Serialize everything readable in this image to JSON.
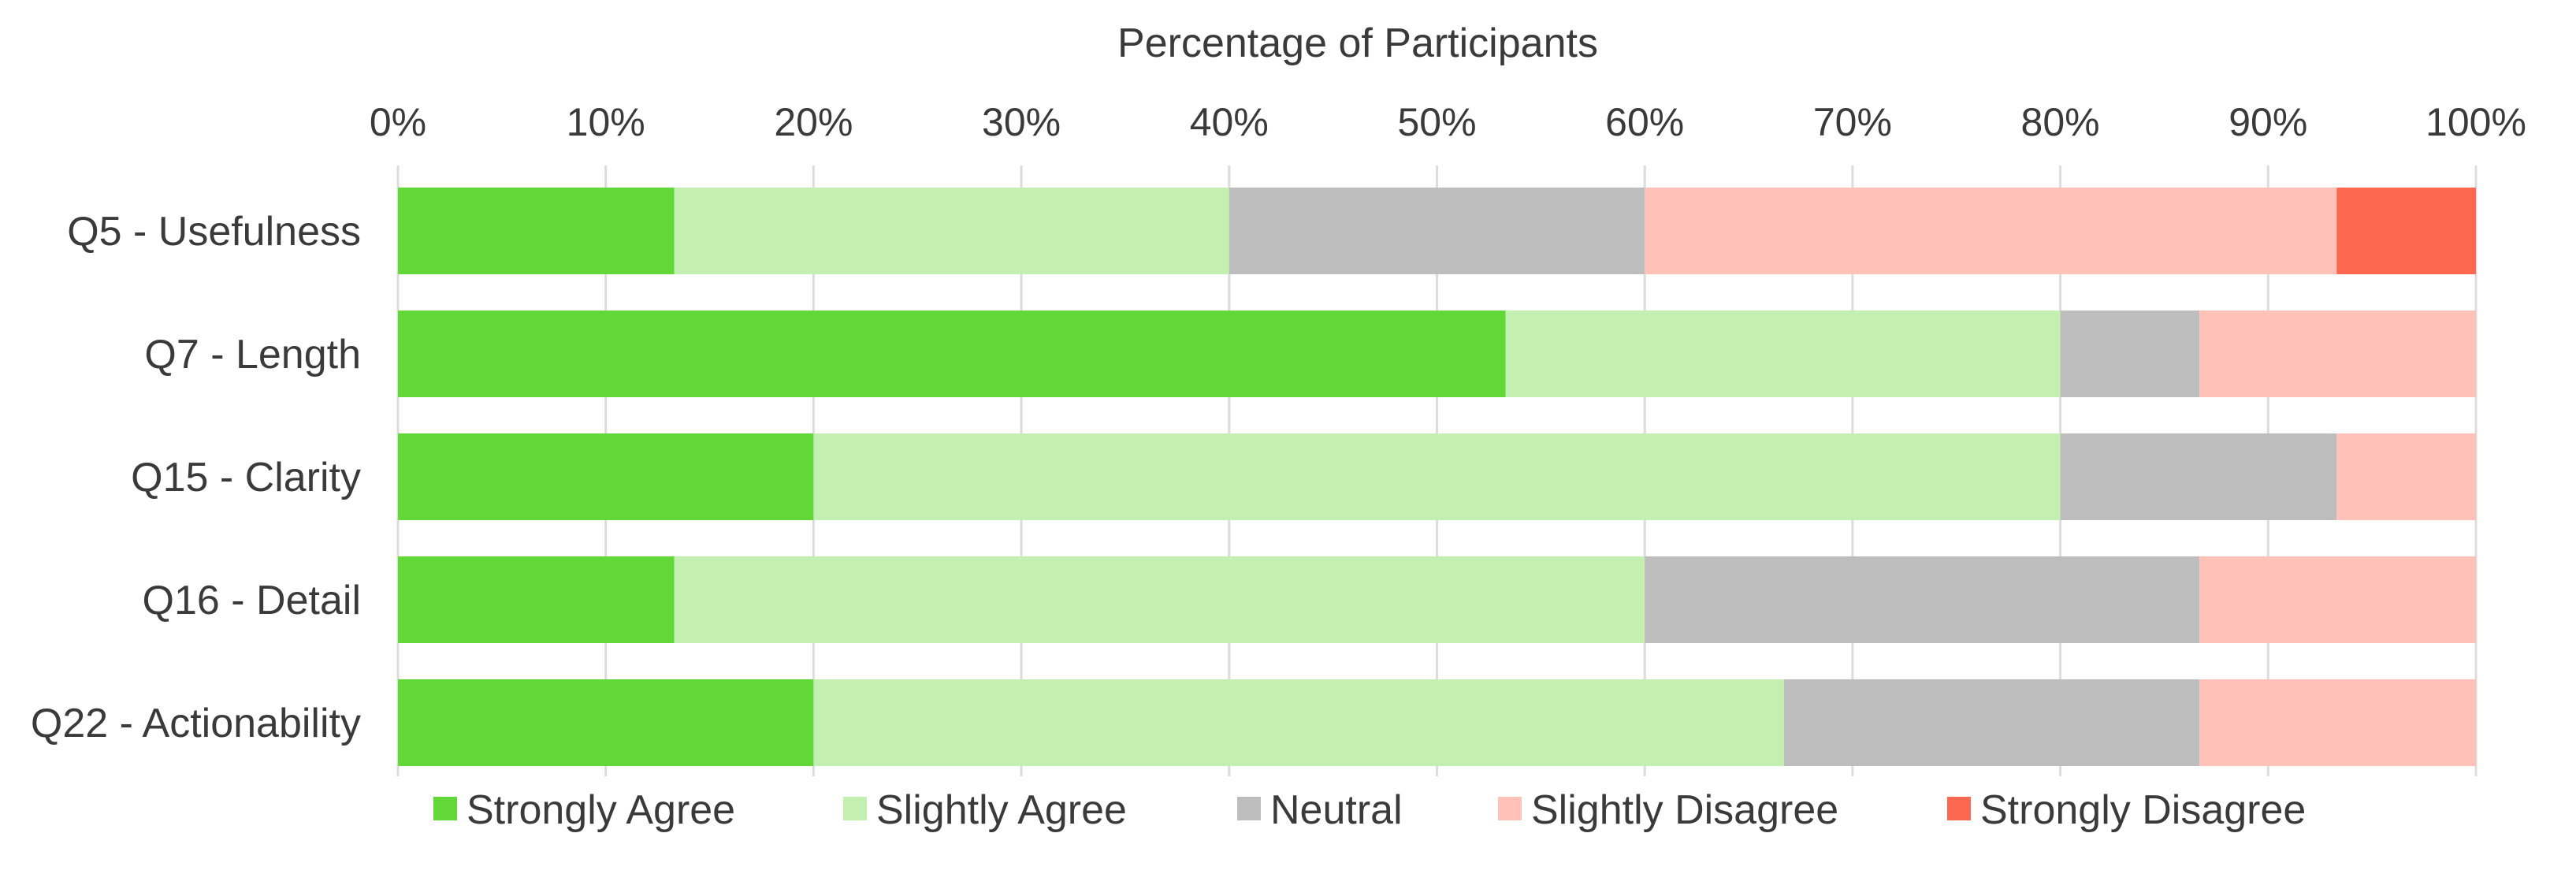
{
  "chart_data": {
    "type": "bar",
    "orientation": "horizontal",
    "stacked": true,
    "xlabel": "Percentage of Participants",
    "xaxis_position": "top",
    "xlim": [
      0,
      100
    ],
    "xticks": [
      "0%",
      "10%",
      "20%",
      "30%",
      "40%",
      "50%",
      "60%",
      "70%",
      "80%",
      "90%",
      "100%"
    ],
    "grid": true,
    "legend_position": "bottom",
    "categories": [
      "Q5 - Usefulness",
      "Q7 - Length",
      "Q15 - Clarity",
      "Q16 - Detail",
      "Q22 - Actionability"
    ],
    "series": [
      {
        "name": "Strongly Agree",
        "color": "#62d838",
        "values": [
          13.3,
          53.3,
          20.0,
          13.3,
          20.0
        ]
      },
      {
        "name": "Slightly Agree",
        "color": "#c3efb1",
        "values": [
          26.7,
          26.7,
          60.0,
          46.7,
          46.7
        ]
      },
      {
        "name": "Neutral",
        "color": "#bdbdbd",
        "values": [
          20.0,
          6.7,
          13.3,
          26.7,
          20.0
        ]
      },
      {
        "name": "Slightly Disagree",
        "color": "#ffc1b8",
        "values": [
          33.3,
          13.3,
          6.7,
          13.3,
          13.3
        ]
      },
      {
        "name": "Strongly Disagree",
        "color": "#ff6850",
        "values": [
          6.7,
          0,
          0,
          0,
          0
        ]
      }
    ]
  }
}
